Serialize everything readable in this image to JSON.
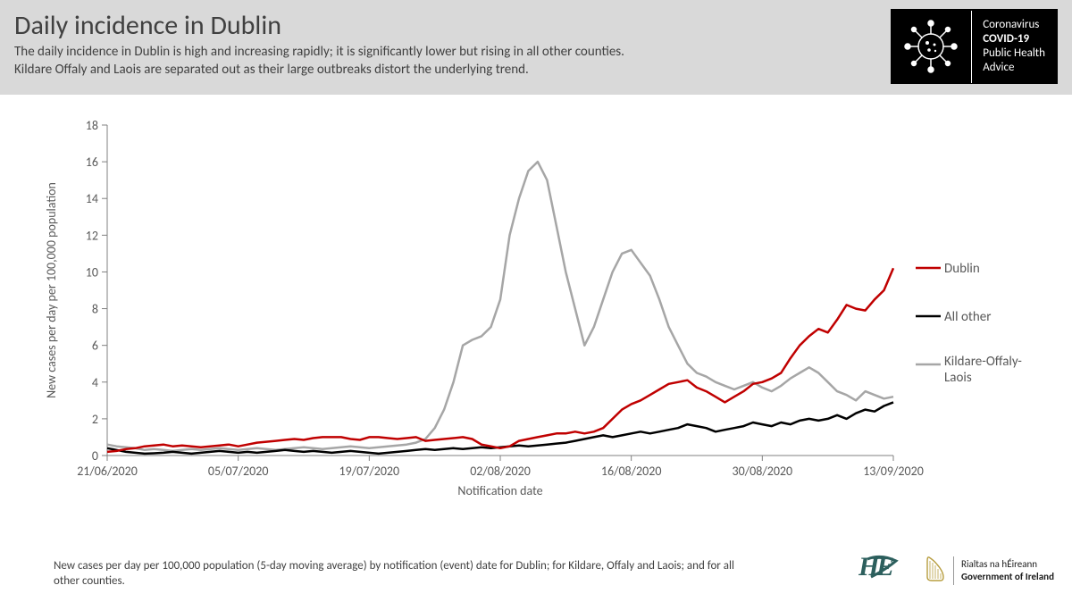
{
  "header": {
    "title": "Daily incidence in Dublin",
    "subtitle": "The daily incidence in Dublin is high and increasing rapidly; it is significantly lower but rising in all other counties.\nKildare Offaly and Laois are separated out as their large outbreaks distort the underlying trend."
  },
  "covid_badge": {
    "line1": "Coronavirus",
    "line2": "COVID-19",
    "line3": "Public Health",
    "line4": "Advice"
  },
  "chart": {
    "type": "line",
    "background_color": "#ffffff",
    "axis_color": "#808080",
    "tick_color": "#808080",
    "text_color": "#595959",
    "font_family": "Calibri, Arial, sans-serif",
    "label_fontsize": 14,
    "tick_fontsize": 14,
    "ylabel": "New cases per day per  100,000 population",
    "xlabel": "Notification date",
    "ylim": [
      0,
      18
    ],
    "ytick_step": 2,
    "yticks": [
      0,
      2,
      4,
      6,
      8,
      10,
      12,
      14,
      16,
      18
    ],
    "xticks": [
      "21/06/2020",
      "05/07/2020",
      "19/07/2020",
      "02/08/2020",
      "16/08/2020",
      "30/08/2020",
      "13/09/2020"
    ],
    "x_index_range": [
      0,
      84
    ],
    "xtick_indices": [
      0,
      14,
      28,
      42,
      56,
      70,
      84
    ],
    "line_width": 2.5,
    "series": [
      {
        "name": "Dublin",
        "color": "#c00000",
        "data": [
          0.2,
          0.25,
          0.35,
          0.4,
          0.5,
          0.55,
          0.6,
          0.5,
          0.55,
          0.5,
          0.45,
          0.5,
          0.55,
          0.6,
          0.5,
          0.6,
          0.7,
          0.75,
          0.8,
          0.85,
          0.9,
          0.85,
          0.95,
          1.0,
          1.0,
          1.0,
          0.9,
          0.85,
          1.0,
          1.0,
          0.95,
          0.9,
          0.95,
          1.0,
          0.8,
          0.85,
          0.9,
          0.95,
          1.0,
          0.9,
          0.6,
          0.5,
          0.4,
          0.5,
          0.8,
          0.9,
          1.0,
          1.1,
          1.2,
          1.2,
          1.3,
          1.2,
          1.3,
          1.5,
          2.0,
          2.5,
          2.8,
          3.0,
          3.3,
          3.6,
          3.9,
          4.0,
          4.1,
          3.7,
          3.5,
          3.2,
          2.9,
          3.2,
          3.5,
          3.9,
          4.0,
          4.2,
          4.5,
          5.3,
          6.0,
          6.5,
          6.9,
          6.7,
          7.4,
          8.2,
          8.0,
          7.9,
          8.5,
          9.0,
          10.2
        ]
      },
      {
        "name": "All other",
        "color": "#000000",
        "data": [
          0.4,
          0.3,
          0.2,
          0.15,
          0.1,
          0.12,
          0.15,
          0.2,
          0.15,
          0.1,
          0.15,
          0.2,
          0.25,
          0.2,
          0.15,
          0.2,
          0.15,
          0.2,
          0.25,
          0.3,
          0.25,
          0.2,
          0.25,
          0.2,
          0.15,
          0.2,
          0.25,
          0.2,
          0.15,
          0.1,
          0.15,
          0.2,
          0.25,
          0.3,
          0.35,
          0.3,
          0.35,
          0.4,
          0.35,
          0.4,
          0.45,
          0.4,
          0.45,
          0.5,
          0.55,
          0.5,
          0.55,
          0.6,
          0.65,
          0.7,
          0.8,
          0.9,
          1.0,
          1.1,
          1.0,
          1.1,
          1.2,
          1.3,
          1.2,
          1.3,
          1.4,
          1.5,
          1.7,
          1.6,
          1.5,
          1.3,
          1.4,
          1.5,
          1.6,
          1.8,
          1.7,
          1.6,
          1.8,
          1.7,
          1.9,
          2.0,
          1.9,
          2.0,
          2.2,
          2.0,
          2.3,
          2.5,
          2.4,
          2.7,
          2.9
        ]
      },
      {
        "name": "Kildare-Offaly-Laois",
        "color": "#a6a6a6",
        "data": [
          0.6,
          0.5,
          0.45,
          0.4,
          0.3,
          0.35,
          0.3,
          0.25,
          0.3,
          0.35,
          0.3,
          0.35,
          0.4,
          0.35,
          0.3,
          0.35,
          0.4,
          0.35,
          0.3,
          0.35,
          0.4,
          0.45,
          0.4,
          0.35,
          0.4,
          0.45,
          0.5,
          0.45,
          0.4,
          0.45,
          0.5,
          0.55,
          0.6,
          0.7,
          0.9,
          1.5,
          2.5,
          4.0,
          6.0,
          6.3,
          6.5,
          7.0,
          8.5,
          12.0,
          14.0,
          15.5,
          16.0,
          15.0,
          12.5,
          10.0,
          8.0,
          6.0,
          7.0,
          8.5,
          10.0,
          11.0,
          11.2,
          10.5,
          9.8,
          8.5,
          7.0,
          6.0,
          5.0,
          4.5,
          4.3,
          4.0,
          3.8,
          3.6,
          3.8,
          4.0,
          3.7,
          3.5,
          3.8,
          4.2,
          4.5,
          4.8,
          4.5,
          4.0,
          3.5,
          3.3,
          3.0,
          3.5,
          3.3,
          3.1,
          3.2
        ]
      }
    ],
    "legend": {
      "position": "right",
      "fontsize": 15,
      "items": [
        {
          "label": "Dublin",
          "color": "#c00000"
        },
        {
          "label": "All other",
          "color": "#000000"
        },
        {
          "label": "Kildare-Offaly-Laois",
          "color": "#a6a6a6"
        }
      ]
    }
  },
  "footer": {
    "note": "New cases per day per 100,000 population (5-day moving average) by notification (event) date for Dublin; for Kildare, Offaly and Laois; and for all other counties.",
    "hse": "HSE",
    "rialtas_line1": "Rialtas na hÉireann",
    "rialtas_line2": "Government of Ireland"
  }
}
